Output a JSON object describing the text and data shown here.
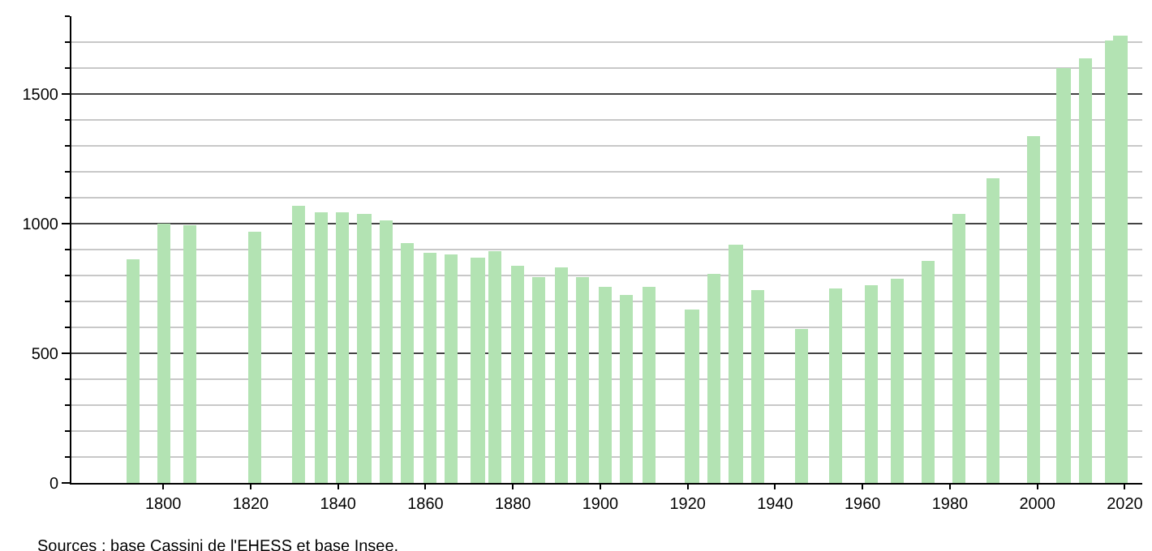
{
  "chart_data": {
    "type": "bar",
    "color": "#b3e3b3",
    "x": [
      1793,
      1800,
      1806,
      1821,
      1831,
      1836,
      1841,
      1846,
      1851,
      1856,
      1861,
      1866,
      1872,
      1876,
      1881,
      1886,
      1891,
      1896,
      1901,
      1906,
      1911,
      1921,
      1926,
      1931,
      1936,
      1946,
      1954,
      1962,
      1968,
      1975,
      1982,
      1990,
      1999,
      2006,
      2011,
      2017,
      2019
    ],
    "values": [
      863,
      1000,
      996,
      969,
      1068,
      1043,
      1043,
      1037,
      1012,
      925,
      888,
      882,
      869,
      896,
      838,
      795,
      832,
      795,
      758,
      727,
      758,
      671,
      807,
      919,
      745,
      596,
      751,
      764,
      789,
      857,
      1037,
      1174,
      1335,
      1602,
      1640,
      1708,
      1727
    ],
    "xlim": [
      1779,
      2024
    ],
    "xticks": [
      1800,
      1820,
      1840,
      1860,
      1880,
      1900,
      1920,
      1940,
      1960,
      1980,
      2000,
      2020
    ],
    "ylim": [
      0,
      1800
    ],
    "yticks": [
      0,
      500,
      1000,
      1500
    ],
    "grid": "y",
    "legend": false,
    "annotations": [
      "Sources : base Cassini de l'EHESS et base Insee."
    ]
  }
}
